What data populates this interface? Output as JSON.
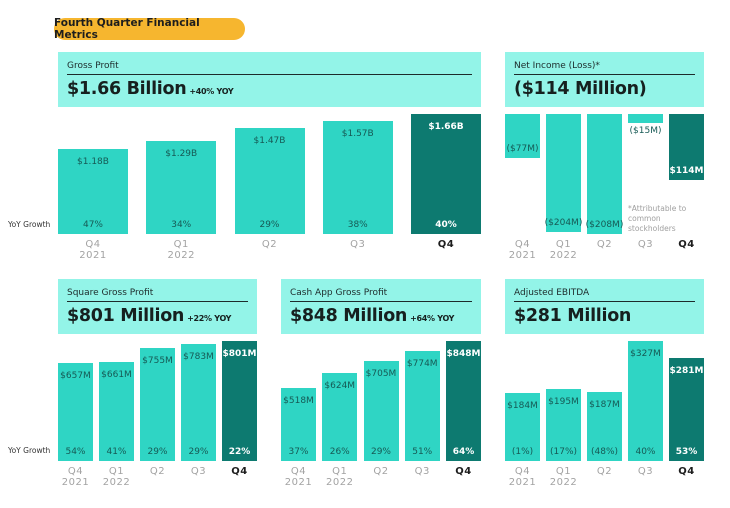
{
  "title": "Fourth Quarter Financial Metrics",
  "yoy_growth_label": "YoY Growth",
  "footnote": "*Attributable to common stockholders",
  "colors": {
    "pill": "#f6b62f",
    "header": "#93f4e8",
    "bar": "#2fd5c4",
    "bar_highlight": "#0d7a70"
  },
  "chart_data": [
    {
      "type": "bar",
      "title": "Gross Profit",
      "headline": "$1.66 Billion",
      "headline_change": "+40% YOY",
      "categories": [
        {
          "quarter": "Q4",
          "year": "2021"
        },
        {
          "quarter": "Q1",
          "year": "2022"
        },
        {
          "quarter": "Q2",
          "year": ""
        },
        {
          "quarter": "Q3",
          "year": ""
        },
        {
          "quarter": "Q4",
          "year": ""
        }
      ],
      "values": [
        1.18,
        1.29,
        1.47,
        1.57,
        1.66
      ],
      "unit": "$B",
      "value_labels": [
        "$1.18B",
        "$1.29B",
        "$1.47B",
        "$1.57B",
        "$1.66B"
      ],
      "yoy_growth": [
        "47%",
        "34%",
        "29%",
        "38%",
        "40%"
      ],
      "highlight_index": 4
    },
    {
      "type": "bar",
      "title": "Net Income (Loss)*",
      "headline": "($114 Million)",
      "headline_change": "",
      "categories": [
        {
          "quarter": "Q4",
          "year": "2021"
        },
        {
          "quarter": "Q1",
          "year": "2022"
        },
        {
          "quarter": "Q2",
          "year": ""
        },
        {
          "quarter": "Q3",
          "year": ""
        },
        {
          "quarter": "Q4",
          "year": ""
        }
      ],
      "values": [
        -77,
        -204,
        -208,
        -15,
        -114
      ],
      "unit": "$M",
      "value_labels": [
        "($77M)",
        "($204M)",
        "($208M)",
        "($15M)",
        "($114M)"
      ],
      "yoy_growth": [],
      "highlight_index": 4
    },
    {
      "type": "bar",
      "title": "Square Gross Profit",
      "headline": "$801 Million",
      "headline_change": "+22% YOY",
      "categories": [
        {
          "quarter": "Q4",
          "year": "2021"
        },
        {
          "quarter": "Q1",
          "year": "2022"
        },
        {
          "quarter": "Q2",
          "year": ""
        },
        {
          "quarter": "Q3",
          "year": ""
        },
        {
          "quarter": "Q4",
          "year": ""
        }
      ],
      "values": [
        657,
        661,
        755,
        783,
        801
      ],
      "unit": "$M",
      "value_labels": [
        "$657M",
        "$661M",
        "$755M",
        "$783M",
        "$801M"
      ],
      "yoy_growth": [
        "54%",
        "41%",
        "29%",
        "29%",
        "22%"
      ],
      "highlight_index": 4
    },
    {
      "type": "bar",
      "title": "Cash App Gross Profit",
      "headline": "$848 Million",
      "headline_change": "+64% YOY",
      "categories": [
        {
          "quarter": "Q4",
          "year": "2021"
        },
        {
          "quarter": "Q1",
          "year": "2022"
        },
        {
          "quarter": "Q2",
          "year": ""
        },
        {
          "quarter": "Q3",
          "year": ""
        },
        {
          "quarter": "Q4",
          "year": ""
        }
      ],
      "values": [
        518,
        624,
        705,
        774,
        848
      ],
      "unit": "$M",
      "value_labels": [
        "$518M",
        "$624M",
        "$705M",
        "$774M",
        "$848M"
      ],
      "yoy_growth": [
        "37%",
        "26%",
        "29%",
        "51%",
        "64%"
      ],
      "highlight_index": 4
    },
    {
      "type": "bar",
      "title": "Adjusted EBITDA",
      "headline": "$281 Million",
      "headline_change": "",
      "categories": [
        {
          "quarter": "Q4",
          "year": "2021"
        },
        {
          "quarter": "Q1",
          "year": "2022"
        },
        {
          "quarter": "Q2",
          "year": ""
        },
        {
          "quarter": "Q3",
          "year": ""
        },
        {
          "quarter": "Q4",
          "year": ""
        }
      ],
      "values": [
        184,
        195,
        187,
        327,
        281
      ],
      "unit": "$M",
      "value_labels": [
        "$184M",
        "$195M",
        "$187M",
        "$327M",
        "$281M"
      ],
      "yoy_growth": [
        "(1%)",
        "(17%)",
        "(48%)",
        "40%",
        "53%"
      ],
      "highlight_index": 4
    }
  ]
}
